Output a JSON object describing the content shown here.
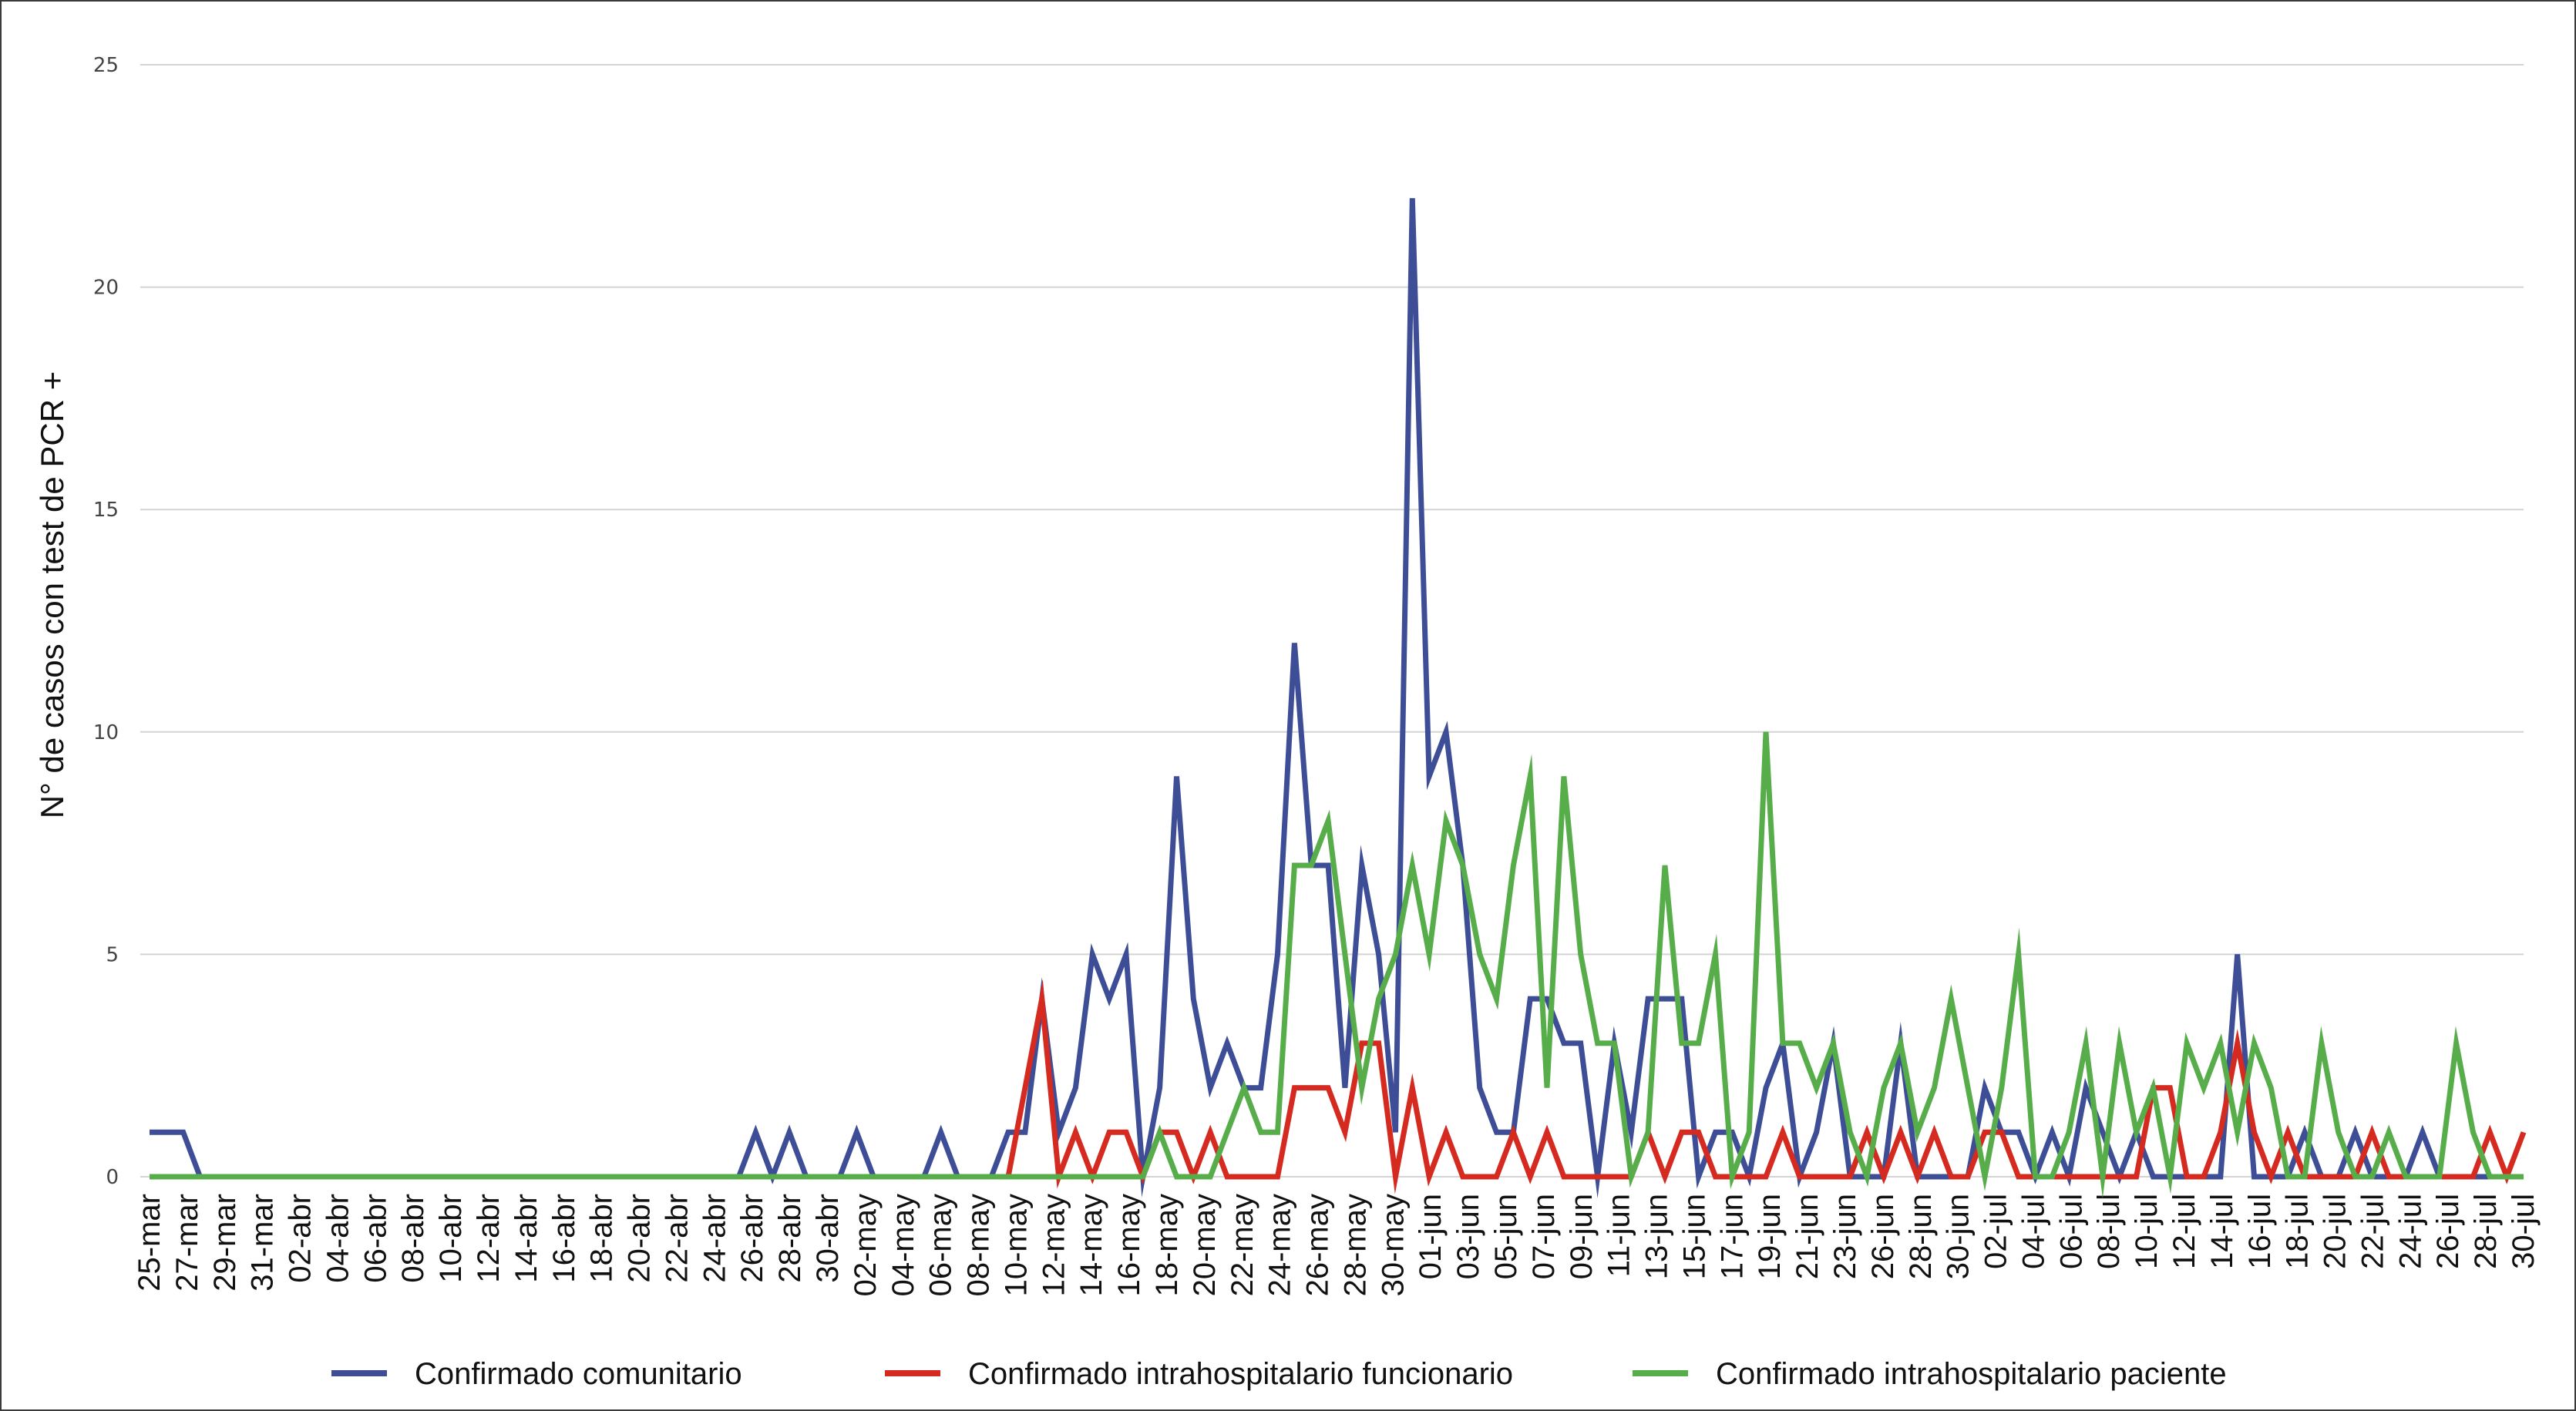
{
  "chart_data": {
    "type": "line",
    "title": "",
    "xlabel": "",
    "ylabel": "N° de casos con test de PCR +",
    "ylim": [
      0,
      25
    ],
    "yticks": [
      0,
      5,
      10,
      15,
      20,
      25
    ],
    "grid": true,
    "legend_position": "bottom",
    "x_tick_labels": [
      "25-mar",
      "27-mar",
      "29-mar",
      "31-mar",
      "02-abr",
      "04-abr",
      "06-abr",
      "08-abr",
      "10-abr",
      "12-abr",
      "14-abr",
      "16-abr",
      "18-abr",
      "20-abr",
      "22-abr",
      "24-abr",
      "26-abr",
      "28-abr",
      "30-abr",
      "02-may",
      "04-may",
      "06-may",
      "08-may",
      "10-may",
      "12-may",
      "14-may",
      "16-may",
      "18-may",
      "20-may",
      "22-may",
      "24-may",
      "26-may",
      "28-may",
      "30-may",
      "01-jun",
      "03-jun",
      "05-jun",
      "07-jun",
      "09-jun",
      "11-jun",
      "13-jun",
      "15-jun",
      "17-jun",
      "19-jun",
      "21-jun",
      "23-jun",
      "26-jun",
      "28-jun",
      "30-jun",
      "02-jul",
      "04-jul",
      "06-jul",
      "08-jul",
      "10-jul",
      "12-jul",
      "14-jul",
      "16-jul",
      "18-jul",
      "20-jul",
      "22-jul",
      "24-jul",
      "26-jul",
      "28-jul",
      "30-jul"
    ],
    "series": [
      {
        "name": "Confirmado comunitario",
        "color": "#3d4e96",
        "values": [
          1,
          1,
          1,
          0,
          0,
          0,
          0,
          0,
          0,
          0,
          0,
          0,
          0,
          0,
          0,
          0,
          0,
          0,
          0,
          0,
          0,
          0,
          0,
          0,
          0,
          0,
          0,
          0,
          0,
          0,
          0,
          0,
          0,
          0,
          0,
          0,
          1,
          0,
          1,
          0,
          0,
          0,
          1,
          0,
          0,
          0,
          0,
          1,
          0,
          0,
          0,
          1,
          1,
          4,
          1,
          2,
          5,
          4,
          5,
          0,
          2,
          9,
          4,
          2,
          3,
          2,
          2,
          5,
          12,
          7,
          7,
          2,
          7,
          5,
          1,
          22,
          9,
          10,
          7,
          2,
          1,
          1,
          4,
          4,
          3,
          3,
          0,
          3,
          1,
          4,
          4,
          4,
          0,
          1,
          1,
          0,
          2,
          3,
          0,
          1,
          3,
          0,
          0,
          0,
          3,
          0,
          0,
          0,
          0,
          2,
          1,
          1,
          0,
          1,
          0,
          2,
          1,
          0,
          1,
          0,
          0,
          0,
          0,
          0,
          5,
          0,
          0,
          0,
          1,
          0,
          0,
          1,
          0,
          0,
          0,
          1,
          0,
          0,
          0,
          0,
          0,
          0
        ]
      },
      {
        "name": "Confirmado intrahospitalario funcionario",
        "color": "#d42a20",
        "values": [
          0,
          0,
          0,
          0,
          0,
          0,
          0,
          0,
          0,
          0,
          0,
          0,
          0,
          0,
          0,
          0,
          0,
          0,
          0,
          0,
          0,
          0,
          0,
          0,
          0,
          0,
          0,
          0,
          0,
          0,
          0,
          0,
          0,
          0,
          0,
          0,
          0,
          0,
          0,
          0,
          0,
          0,
          0,
          0,
          0,
          0,
          0,
          0,
          0,
          0,
          0,
          0,
          2,
          4,
          0,
          1,
          0,
          1,
          1,
          0,
          1,
          1,
          0,
          1,
          0,
          0,
          0,
          0,
          2,
          2,
          2,
          1,
          3,
          3,
          0,
          2,
          0,
          1,
          0,
          0,
          0,
          1,
          0,
          1,
          0,
          0,
          0,
          0,
          0,
          1,
          0,
          1,
          1,
          0,
          0,
          0,
          0,
          1,
          0,
          0,
          0,
          0,
          1,
          0,
          1,
          0,
          1,
          0,
          0,
          1,
          1,
          0,
          0,
          0,
          0,
          0,
          0,
          0,
          0,
          2,
          2,
          0,
          0,
          1,
          3,
          1,
          0,
          1,
          0,
          0,
          0,
          0,
          1,
          0,
          0,
          0,
          0,
          0,
          0,
          1,
          0,
          1
        ]
      },
      {
        "name": "Confirmado intrahospitalario paciente",
        "color": "#58ad4b",
        "values": [
          0,
          0,
          0,
          0,
          0,
          0,
          0,
          0,
          0,
          0,
          0,
          0,
          0,
          0,
          0,
          0,
          0,
          0,
          0,
          0,
          0,
          0,
          0,
          0,
          0,
          0,
          0,
          0,
          0,
          0,
          0,
          0,
          0,
          0,
          0,
          0,
          0,
          0,
          0,
          0,
          0,
          0,
          0,
          0,
          0,
          0,
          0,
          0,
          0,
          0,
          0,
          0,
          0,
          0,
          0,
          0,
          0,
          0,
          0,
          0,
          1,
          0,
          0,
          0,
          1,
          2,
          1,
          1,
          7,
          7,
          8,
          5,
          2,
          4,
          5,
          7,
          5,
          8,
          7,
          5,
          4,
          7,
          9,
          2,
          9,
          5,
          3,
          3,
          0,
          1,
          7,
          3,
          3,
          5,
          0,
          1,
          10,
          3,
          3,
          2,
          3,
          1,
          0,
          2,
          3,
          1,
          2,
          4,
          2,
          0,
          2,
          5,
          0,
          0,
          1,
          3,
          0,
          3,
          1,
          2,
          0,
          3,
          2,
          3,
          1,
          3,
          2,
          0,
          0,
          3,
          1,
          0,
          0,
          1,
          0,
          0,
          0,
          3,
          1,
          0,
          0,
          0
        ]
      }
    ]
  }
}
